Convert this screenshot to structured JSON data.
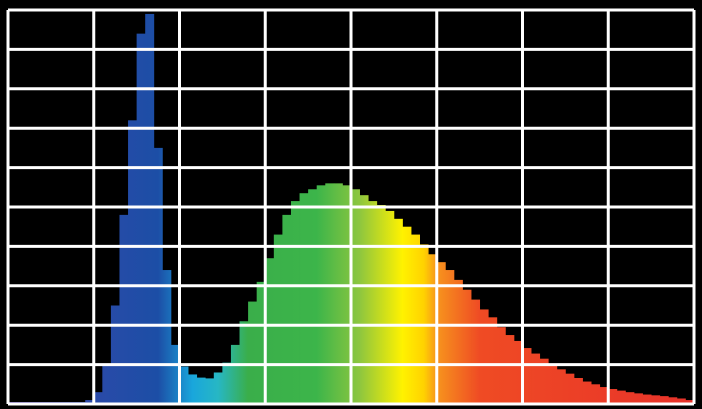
{
  "chart_data": {
    "type": "histogram",
    "bins": [
      0,
      0.1,
      0.2,
      0.3,
      0.4,
      0.5,
      0.6,
      0.7,
      0.8,
      0.9,
      1.0,
      1.1,
      1.2,
      1.3,
      1.4,
      1.5,
      1.6,
      1.7,
      1.8,
      1.9,
      2.0,
      2.1,
      2.2,
      2.3,
      2.4,
      2.5,
      2.6,
      2.7,
      2.8,
      2.9,
      3.0,
      3.1,
      3.2,
      3.3,
      3.4,
      3.5,
      3.6,
      3.7,
      3.8,
      3.9,
      4.0,
      4.1,
      4.2,
      4.3,
      4.4,
      4.5,
      4.6,
      4.7,
      4.8,
      4.9,
      5.0,
      5.1,
      5.2,
      5.3,
      5.4,
      5.5,
      5.6,
      5.7,
      5.8,
      5.9,
      6.0,
      6.1,
      6.2,
      6.3,
      6.4,
      6.5,
      6.6,
      6.7,
      6.8,
      6.9,
      7.0,
      7.1,
      7.2,
      7.3,
      7.4,
      7.5,
      7.6,
      7.7,
      7.8,
      7.9,
      8.0
    ],
    "values": [
      0.05,
      0.05,
      0.05,
      0.05,
      0.05,
      0.05,
      0.05,
      0.05,
      0.05,
      0.1,
      0.3,
      1.0,
      2.5,
      4.8,
      7.2,
      9.4,
      9.9,
      6.5,
      3.4,
      1.5,
      0.95,
      0.75,
      0.67,
      0.65,
      0.8,
      1.05,
      1.5,
      2.1,
      2.6,
      3.1,
      3.7,
      4.3,
      4.8,
      5.15,
      5.35,
      5.45,
      5.55,
      5.6,
      5.6,
      5.55,
      5.45,
      5.3,
      5.15,
      5.05,
      4.9,
      4.7,
      4.5,
      4.3,
      4.05,
      3.8,
      3.6,
      3.4,
      3.15,
      2.9,
      2.65,
      2.4,
      2.2,
      1.95,
      1.75,
      1.6,
      1.42,
      1.28,
      1.15,
      1.0,
      0.88,
      0.77,
      0.66,
      0.57,
      0.5,
      0.43,
      0.38,
      0.34,
      0.3,
      0.27,
      0.24,
      0.22,
      0.2,
      0.17,
      0.14,
      0.1
    ],
    "color_stops": [
      [
        0,
        "#5b3fa6"
      ],
      [
        1.0,
        "#2a4aa8"
      ],
      [
        1.75,
        "#1c4ea6"
      ],
      [
        2.15,
        "#19a6dc"
      ],
      [
        2.45,
        "#27b7c4"
      ],
      [
        2.8,
        "#3aae4a"
      ],
      [
        3.6,
        "#3cb54a"
      ],
      [
        4.1,
        "#8dc63f"
      ],
      [
        4.6,
        "#fff200"
      ],
      [
        4.85,
        "#ffd200"
      ],
      [
        5.0,
        "#f7941d"
      ],
      [
        5.5,
        "#ef4b24"
      ],
      [
        8,
        "#e8322a"
      ]
    ],
    "background": "#000000",
    "grid_color": "#ffffff",
    "xlim": [
      0,
      8
    ],
    "ylim": [
      0,
      10
    ],
    "xticks": [
      0,
      1,
      2,
      3,
      4,
      5,
      6,
      7,
      8
    ],
    "yticks": [
      0,
      1,
      2,
      3,
      4,
      5,
      6,
      7,
      8,
      9,
      10
    ],
    "grid": true
  }
}
